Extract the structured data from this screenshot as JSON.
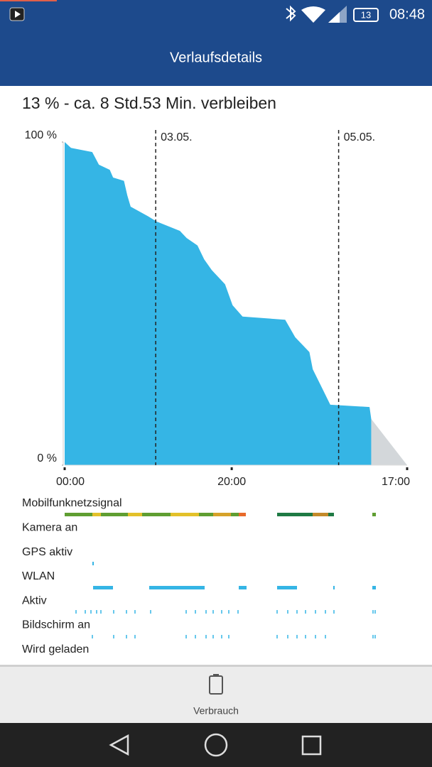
{
  "status_bar": {
    "battery": "13",
    "time": "08:48"
  },
  "app_bar": {
    "title": "Verlaufsdetails"
  },
  "summary": "13 % - ca. 8 Std.53 Min. verbleiben",
  "chart_data": {
    "type": "area",
    "x": [
      0,
      0.76,
      3.3,
      4.1,
      5.4,
      5.8,
      7.1,
      7.5,
      7.9,
      10,
      11,
      13.8,
      14.6,
      15.9,
      16.7,
      17.6,
      19.2,
      20.1,
      21.3,
      26.4,
      27.6,
      29.3,
      29.7,
      30.6,
      31.8,
      36.5,
      36.7
    ],
    "values": [
      100,
      98.2,
      96.9,
      93,
      91.4,
      89,
      88,
      83.5,
      80,
      77,
      75.4,
      72.5,
      70.3,
      68,
      63.7,
      60.4,
      56,
      49.5,
      46,
      45,
      39.6,
      35,
      29.7,
      25,
      18.7,
      18,
      14.3
    ],
    "color": "#35b5e5",
    "xlim": [
      0,
      41
    ],
    "ylim": [
      0,
      100
    ],
    "yticks": [
      {
        "value": 100,
        "label": "100 %"
      },
      {
        "value": 0,
        "label": "0 %"
      }
    ],
    "xticks": [
      {
        "value": 0,
        "label": "00:00"
      },
      {
        "value": 20,
        "label": "20:00"
      },
      {
        "value": 41,
        "label": "17:00"
      }
    ],
    "markers": [
      {
        "x": 10.9,
        "label": "03.05."
      },
      {
        "x": 32.8,
        "label": "05.05."
      }
    ]
  },
  "tracks": [
    "Mobilfunknetzsignal",
    "Kamera an",
    "GPS aktiv",
    "WLAN",
    "Aktiv",
    "Bildschirm an",
    "Wird geladen"
  ],
  "bottom_tab": {
    "label": "Verbrauch"
  }
}
